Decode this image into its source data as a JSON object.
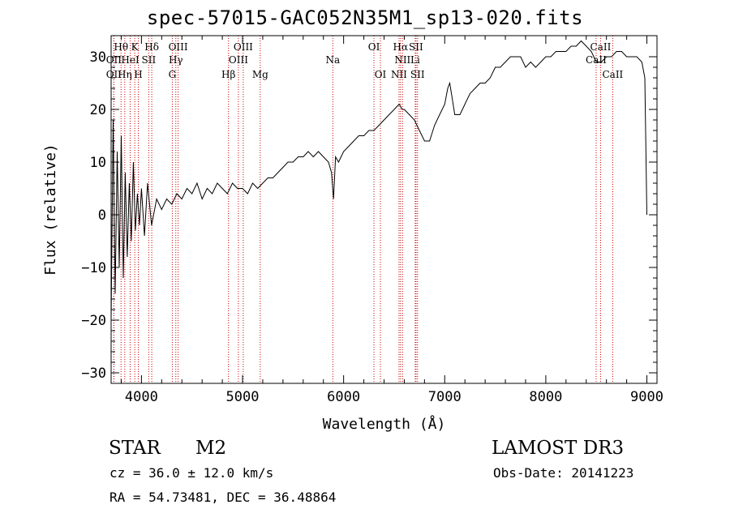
{
  "chart_data": {
    "type": "line",
    "title": "spec-57015-GAC052N35M1_sp13-020.fits",
    "xlabel": "Wavelength (Å)",
    "ylabel": "Flux (relative)",
    "xlim": [
      3700,
      9100
    ],
    "ylim": [
      -32,
      34
    ],
    "xticks": [
      4000,
      5000,
      6000,
      7000,
      8000,
      9000
    ],
    "yticks": [
      -30,
      -20,
      -10,
      0,
      10,
      20,
      30
    ],
    "grid": false,
    "series": [
      {
        "name": "flux",
        "x": [
          3700,
          3720,
          3740,
          3760,
          3780,
          3800,
          3820,
          3840,
          3860,
          3880,
          3900,
          3920,
          3940,
          3960,
          3980,
          4000,
          4030,
          4060,
          4100,
          4150,
          4200,
          4250,
          4300,
          4350,
          4400,
          4450,
          4500,
          4550,
          4600,
          4650,
          4700,
          4750,
          4800,
          4850,
          4900,
          4950,
          5000,
          5050,
          5100,
          5150,
          5200,
          5250,
          5300,
          5350,
          5400,
          5450,
          5500,
          5550,
          5600,
          5650,
          5700,
          5750,
          5800,
          5850,
          5880,
          5900,
          5920,
          5950,
          6000,
          6050,
          6100,
          6150,
          6200,
          6250,
          6300,
          6350,
          6400,
          6450,
          6500,
          6550,
          6580,
          6600,
          6650,
          6700,
          6750,
          6800,
          6850,
          6900,
          6950,
          7000,
          7030,
          7050,
          7100,
          7150,
          7200,
          7250,
          7300,
          7350,
          7400,
          7450,
          7500,
          7550,
          7600,
          7650,
          7700,
          7750,
          7800,
          7850,
          7900,
          7950,
          8000,
          8050,
          8100,
          8150,
          8200,
          8250,
          8300,
          8350,
          8400,
          8450,
          8500,
          8550,
          8600,
          8650,
          8700,
          8750,
          8800,
          8850,
          8900,
          8950,
          8980,
          9000
        ],
        "y": [
          -20,
          18,
          -15,
          12,
          -10,
          15,
          -12,
          8,
          -8,
          6,
          -5,
          10,
          -3,
          4,
          -2,
          5,
          -4,
          6,
          -2,
          3,
          1,
          3,
          2,
          4,
          3,
          5,
          4,
          6,
          3,
          5,
          4,
          6,
          5,
          4,
          6,
          5,
          5,
          4,
          6,
          5,
          6,
          7,
          7,
          8,
          9,
          10,
          10,
          11,
          11,
          12,
          11,
          12,
          11,
          10,
          8,
          3,
          11,
          10,
          12,
          13,
          14,
          15,
          15,
          16,
          16,
          17,
          18,
          19,
          20,
          21,
          20,
          20,
          19,
          18,
          16,
          14,
          14,
          17,
          19,
          21,
          24,
          25,
          19,
          19,
          21,
          23,
          24,
          25,
          25,
          26,
          28,
          28,
          29,
          30,
          30,
          30,
          28,
          29,
          28,
          29,
          30,
          30,
          31,
          31,
          31,
          32,
          32,
          33,
          32,
          31,
          29,
          29,
          30,
          30,
          31,
          31,
          30,
          30,
          30,
          29,
          26,
          0
        ]
      }
    ],
    "line_markers": [
      {
        "label": "Hθ",
        "wavelength": 3798,
        "row": 1
      },
      {
        "label": "OII",
        "wavelength": 3727,
        "row": 2
      },
      {
        "label": "K",
        "wavelength": 3934,
        "row": 1
      },
      {
        "label": "HeI",
        "wavelength": 3889,
        "row": 2
      },
      {
        "label": "OII",
        "wavelength": 3727,
        "row": 3
      },
      {
        "label": "Hη",
        "wavelength": 3835,
        "row": 3
      },
      {
        "label": "H",
        "wavelength": 3969,
        "row": 3
      },
      {
        "label": "Hδ",
        "wavelength": 4102,
        "row": 1
      },
      {
        "label": "SII",
        "wavelength": 4072,
        "row": 2
      },
      {
        "label": "OIII",
        "wavelength": 4363,
        "row": 1
      },
      {
        "label": "Hγ",
        "wavelength": 4340,
        "row": 2
      },
      {
        "label": "G",
        "wavelength": 4305,
        "row": 3
      },
      {
        "label": "OIII",
        "wavelength": 5007,
        "row": 1
      },
      {
        "label": "OIII",
        "wavelength": 4959,
        "row": 2
      },
      {
        "label": "Hβ",
        "wavelength": 4861,
        "row": 3
      },
      {
        "label": "Mg",
        "wavelength": 5175,
        "row": 3
      },
      {
        "label": "Na",
        "wavelength": 5893,
        "row": 2
      },
      {
        "label": "OI",
        "wavelength": 6300,
        "row": 1
      },
      {
        "label": "OI",
        "wavelength": 6364,
        "row": 3
      },
      {
        "label": "Hα",
        "wavelength": 6563,
        "row": 1
      },
      {
        "label": "SII",
        "wavelength": 6716,
        "row": 1
      },
      {
        "label": "NII",
        "wavelength": 6583,
        "row": 2
      },
      {
        "label": "Li",
        "wavelength": 6708,
        "row": 2
      },
      {
        "label": "NII",
        "wavelength": 6548,
        "row": 3
      },
      {
        "label": "SII",
        "wavelength": 6731,
        "row": 3
      },
      {
        "label": "CaII",
        "wavelength": 8542,
        "row": 1
      },
      {
        "label": "CaII",
        "wavelength": 8498,
        "row": 2
      },
      {
        "label": "CaII",
        "wavelength": 8662,
        "row": 3
      }
    ],
    "marker_color": "#cc0000"
  },
  "info": {
    "object_class": "STAR",
    "subclass": "M2",
    "survey": "LAMOST DR3",
    "velocity": "cz = 36.0 ± 12.0 km/s",
    "obs_date": "Obs-Date: 20141223",
    "coords": "RA =  54.73481, DEC =  36.48864"
  }
}
